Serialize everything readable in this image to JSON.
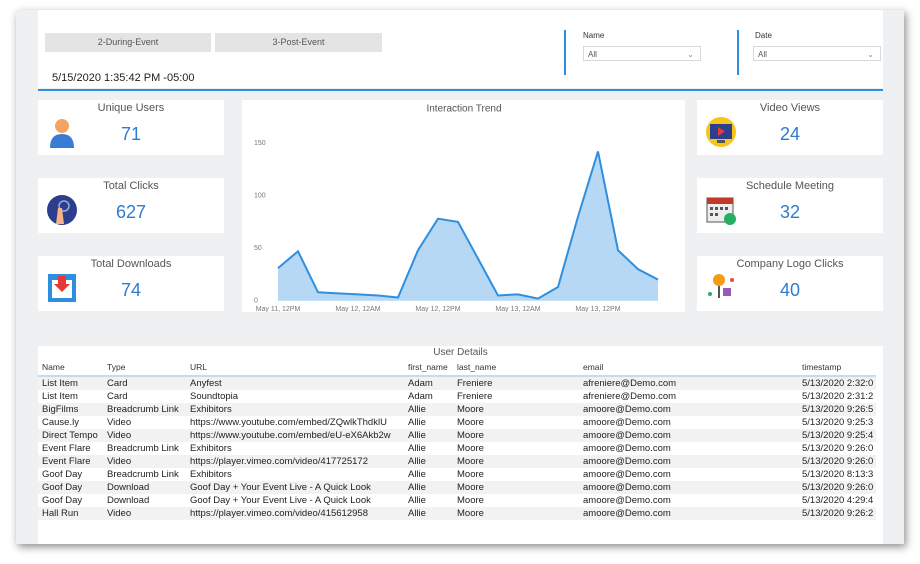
{
  "header": {
    "tabs": [
      "2-During-Event",
      "3-Post-Event"
    ],
    "timestamp": "5/15/2020 1:35:42 PM -05:00"
  },
  "filters": [
    {
      "label": "Name",
      "value": "All"
    },
    {
      "label": "Date",
      "value": "All"
    }
  ],
  "kpis": [
    {
      "label": "Unique Users",
      "value": 71
    },
    {
      "label": "Total Clicks",
      "value": 627
    },
    {
      "label": "Total Downloads",
      "value": 74
    },
    {
      "label": "Video Views",
      "value": 24
    },
    {
      "label": "Schedule Meeting",
      "value": 32
    },
    {
      "label": "Company Logo Clicks",
      "value": 40
    }
  ],
  "chart_data": {
    "type": "area",
    "title": "Interaction Trend",
    "categories": [
      "May 11, 12PM",
      null,
      null,
      null,
      "May 12, 12AM",
      null,
      null,
      null,
      "May 12, 12PM",
      null,
      null,
      null,
      "May 13, 12AM",
      null,
      null,
      null,
      "May 13, 12PM",
      null,
      null,
      null
    ],
    "values": [
      31,
      47,
      8,
      7,
      6,
      5,
      3,
      48,
      78,
      75,
      40,
      5,
      6,
      2,
      13,
      80,
      142,
      48,
      30,
      20
    ],
    "color": "#2e8fe0",
    "ylim": [
      0,
      150
    ],
    "yticks": [
      0,
      50,
      100,
      150
    ]
  },
  "table": {
    "title": "User Details",
    "columns": [
      "Name",
      "Type",
      "URL",
      "first_name",
      "last_name",
      "email",
      "timestamp"
    ],
    "rows": [
      [
        "List Item",
        "Card",
        "Anyfest",
        "Adam",
        "Freniere",
        "afreniere@Demo.com",
        "5/13/2020 2:32:0"
      ],
      [
        "List Item",
        "Card",
        "Soundtopia",
        "Adam",
        "Freniere",
        "afreniere@Demo.com",
        "5/13/2020 2:31:2"
      ],
      [
        "BigFilms",
        "Breadcrumb Link",
        "Exhibitors",
        "Allie",
        "Moore",
        "amoore@Demo.com",
        "5/13/2020 9:26:5"
      ],
      [
        "Cause.ly",
        "Video",
        "https://www.youtube.com/embed/ZQwlkThdklU",
        "Allie",
        "Moore",
        "amoore@Demo.com",
        "5/13/2020 9:25:3"
      ],
      [
        "Direct Tempo",
        "Video",
        "https://www.youtube.com/embed/eU-eX6Akb2w",
        "Allie",
        "Moore",
        "amoore@Demo.com",
        "5/13/2020 9:25:4"
      ],
      [
        "Event Flare",
        "Breadcrumb Link",
        "Exhibitors",
        "Allie",
        "Moore",
        "amoore@Demo.com",
        "5/13/2020 9:26:0"
      ],
      [
        "Event Flare",
        "Video",
        "https://player.vimeo.com/video/417725172",
        "Allie",
        "Moore",
        "amoore@Demo.com",
        "5/13/2020 9:26:0"
      ],
      [
        "Goof Day",
        "Breadcrumb Link",
        "Exhibitors",
        "Allie",
        "Moore",
        "amoore@Demo.com",
        "5/13/2020 8:13:3"
      ],
      [
        "Goof Day",
        "Download",
        "Goof Day + Your Event Live - A Quick Look",
        "Allie",
        "Moore",
        "amoore@Demo.com",
        "5/13/2020 9:26:0"
      ],
      [
        "Goof Day",
        "Download",
        "Goof Day + Your Event Live - A Quick Look",
        "Allie",
        "Moore",
        "amoore@Demo.com",
        "5/13/2020 4:29:4"
      ],
      [
        "Hall Run",
        "Video",
        "https://player.vimeo.com/video/415612958",
        "Allie",
        "Moore",
        "amoore@Demo.com",
        "5/13/2020 9:26:2"
      ]
    ]
  }
}
